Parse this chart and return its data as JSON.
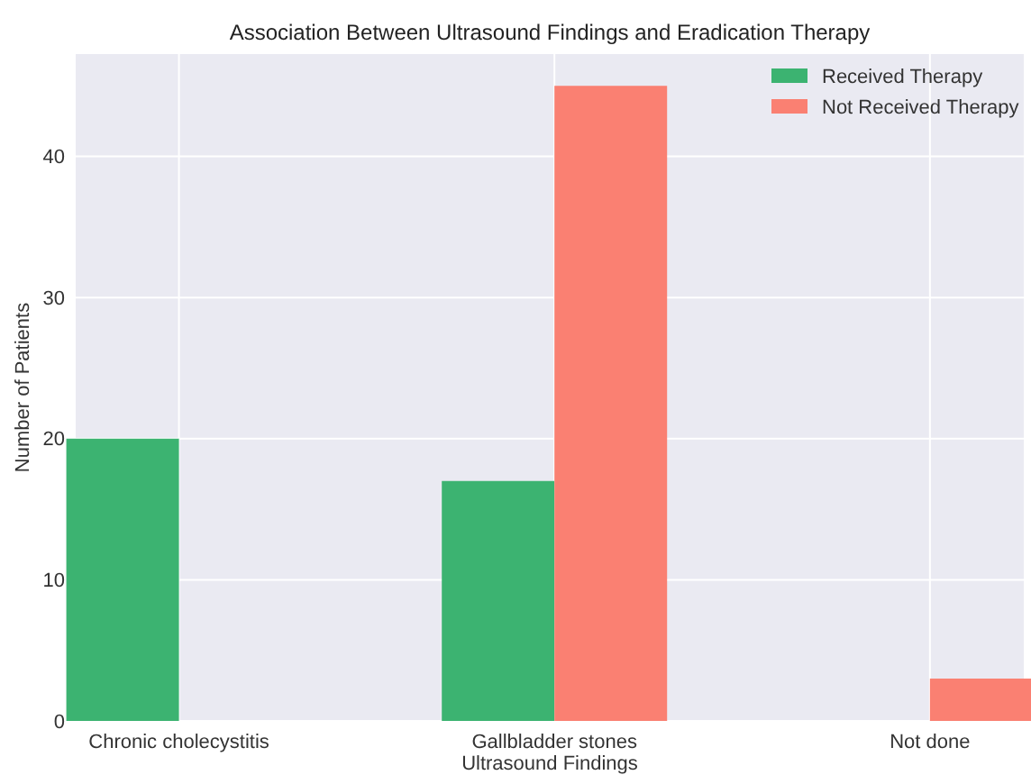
{
  "chart_data": {
    "type": "bar",
    "title": "Association Between Ultrasound Findings and Eradication Therapy",
    "xlabel": "Ultrasound Findings",
    "ylabel": "Number of Patients",
    "categories": [
      "Chronic cholecystitis",
      "Gallbladder stones",
      "Not done"
    ],
    "series": [
      {
        "name": "Received Therapy",
        "color": "#3cb371",
        "values": [
          20,
          17,
          0
        ]
      },
      {
        "name": "Not Received Therapy",
        "color": "#fa8072",
        "values": [
          0,
          45,
          3
        ]
      }
    ],
    "ylim": [
      0,
      47.25
    ],
    "yticks": [
      0,
      10,
      20,
      30,
      40
    ],
    "grid": true,
    "legend": "top right"
  }
}
